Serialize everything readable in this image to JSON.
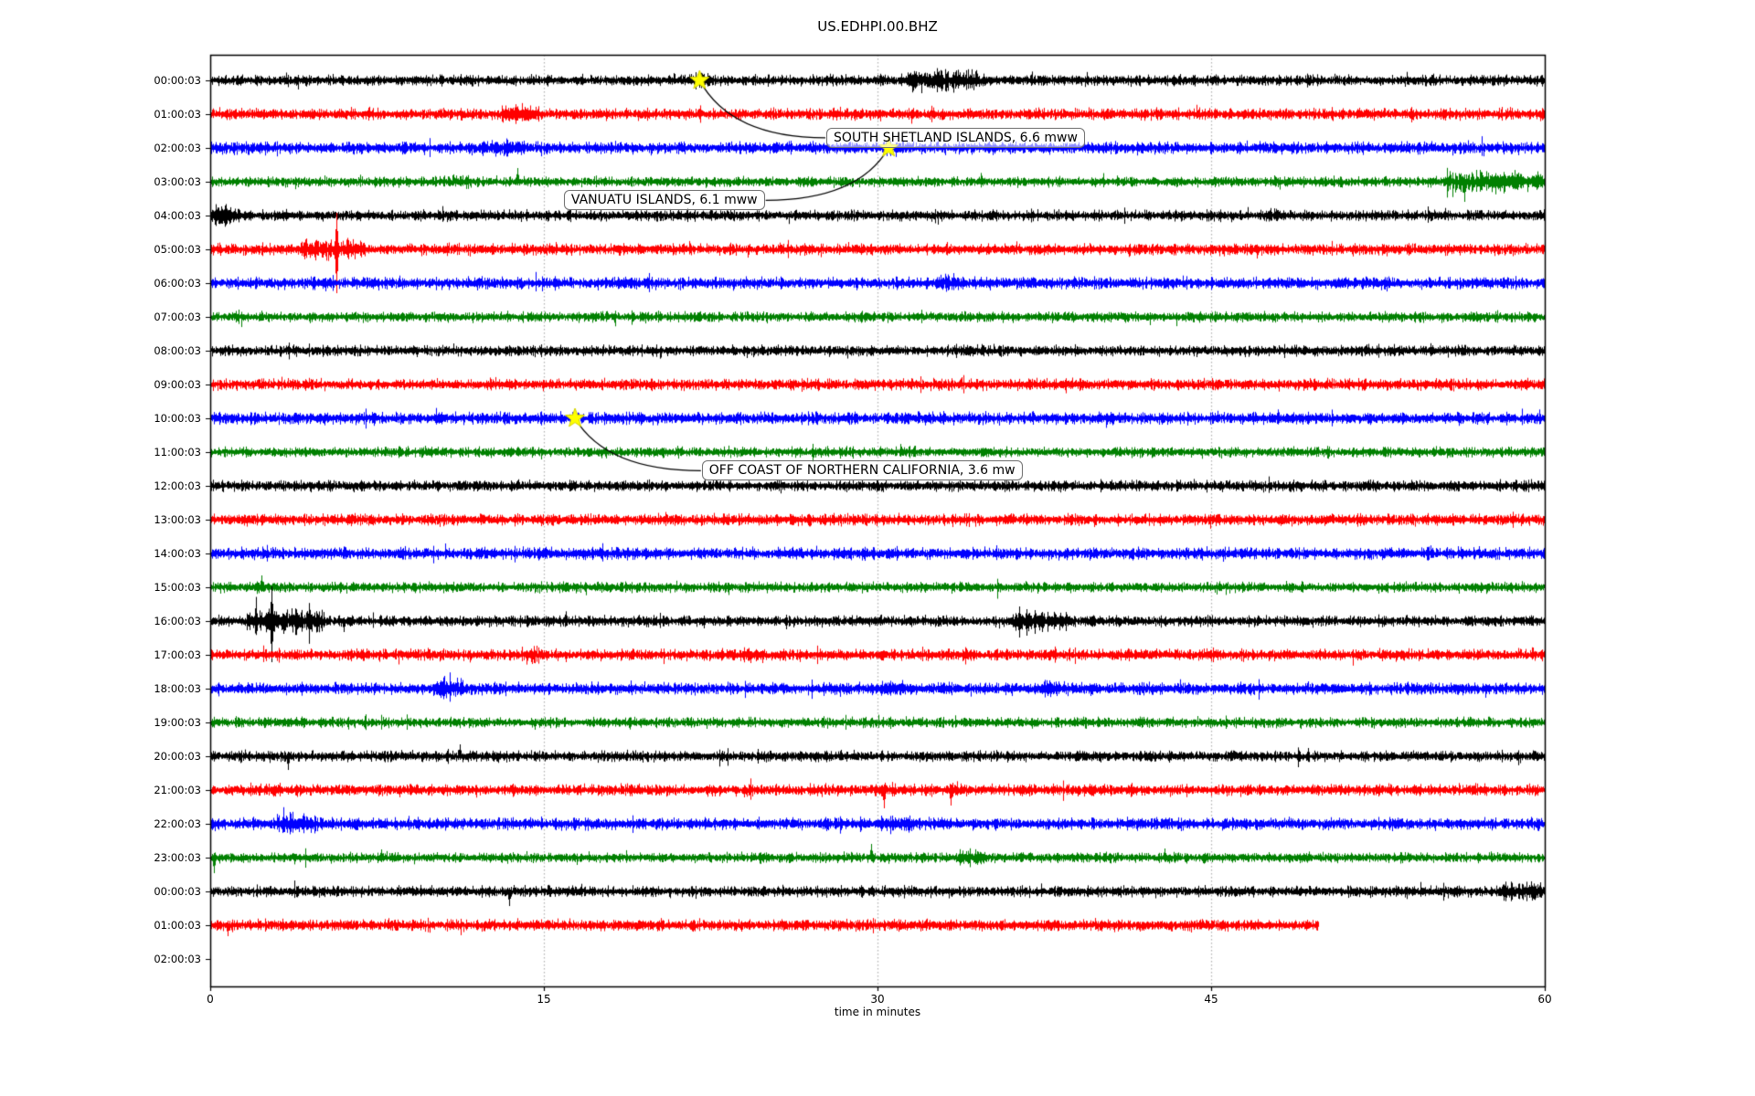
{
  "title": "US.EDHPI.00.BHZ",
  "xlabel": "time in minutes",
  "chart_data": {
    "type": "line",
    "subtype": "seismogram-dayplot",
    "title": "US.EDHPI.00.BHZ",
    "xlabel": "time in minutes",
    "x_unit": "minutes",
    "x_range": [
      0,
      60
    ],
    "x_ticks": [
      "0",
      "15",
      "30",
      "45",
      "60"
    ],
    "x_tick_values": [
      0,
      15,
      30,
      45,
      60
    ],
    "grid": {
      "vertical_gridlines_minutes": [
        15,
        30,
        45
      ],
      "style": "dotted",
      "color": "#b0b0b0"
    },
    "trace_color_cycle": [
      "#000000",
      "#ff0000",
      "#0000ff",
      "#008000"
    ],
    "marker_color": "#ffff00",
    "rows": [
      {
        "label": "00:00:03",
        "color": "#000000",
        "start_min": 0,
        "end_min": 60,
        "bursts": [
          [
            21.6,
            22.4,
            1.5
          ],
          [
            31.3,
            34.3,
            2.1
          ]
        ],
        "impulses": [
          [
            33.4,
            9,
            7
          ]
        ]
      },
      {
        "label": "01:00:03",
        "color": "#ff0000",
        "start_min": 0,
        "end_min": 60,
        "bursts": [
          [
            13.2,
            14.4,
            1.8
          ]
        ],
        "impulses": []
      },
      {
        "label": "02:00:03",
        "color": "#0000ff",
        "start_min": 0,
        "end_min": 60,
        "bursts": [
          [
            12.6,
            13.3,
            1.4
          ],
          [
            30.2,
            31.0,
            1.3
          ]
        ],
        "impulses": []
      },
      {
        "label": "03:00:03",
        "color": "#008000",
        "start_min": 0,
        "end_min": 60,
        "bursts": [
          [
            11.0,
            11.6,
            1.4
          ],
          [
            55.6,
            59.7,
            2.0
          ]
        ],
        "impulses": [
          [
            13.8,
            15,
            4
          ],
          [
            56.4,
            6,
            22
          ],
          [
            58.8,
            10,
            6
          ]
        ]
      },
      {
        "label": "04:00:03",
        "color": "#000000",
        "start_min": 0,
        "end_min": 60,
        "bursts": [
          [
            0,
            0.9,
            1.9
          ],
          [
            47.4,
            48.0,
            1.3
          ]
        ],
        "impulses": [
          [
            0.35,
            7,
            9
          ]
        ]
      },
      {
        "label": "05:00:03",
        "color": "#ff0000",
        "start_min": 0,
        "end_min": 60,
        "bursts": [
          [
            4.3,
            6.6,
            1.9
          ]
        ],
        "impulses": [
          [
            5.68,
            40,
            48
          ]
        ]
      },
      {
        "label": "06:00:03",
        "color": "#0000ff",
        "start_min": 0,
        "end_min": 60,
        "bursts": [
          [
            32.8,
            33.7,
            1.5
          ]
        ],
        "impulses": [
          [
            33.2,
            6,
            7
          ]
        ]
      },
      {
        "label": "07:00:03",
        "color": "#008000",
        "start_min": 0,
        "end_min": 60,
        "bursts": [],
        "impulses": []
      },
      {
        "label": "08:00:03",
        "color": "#000000",
        "start_min": 0,
        "end_min": 60,
        "bursts": [],
        "impulses": [
          [
            14.6,
            5,
            3
          ]
        ]
      },
      {
        "label": "09:00:03",
        "color": "#ff0000",
        "start_min": 0,
        "end_min": 60,
        "bursts": [],
        "impulses": []
      },
      {
        "label": "10:00:03",
        "color": "#0000ff",
        "start_min": 0,
        "end_min": 60,
        "bursts": [],
        "impulses": []
      },
      {
        "label": "11:00:03",
        "color": "#008000",
        "start_min": 0,
        "end_min": 60,
        "bursts": [],
        "impulses": []
      },
      {
        "label": "12:00:03",
        "color": "#000000",
        "start_min": 0,
        "end_min": 60,
        "bursts": [],
        "impulses": []
      },
      {
        "label": "13:00:03",
        "color": "#ff0000",
        "start_min": 0,
        "end_min": 60,
        "bursts": [],
        "impulses": []
      },
      {
        "label": "14:00:03",
        "color": "#0000ff",
        "start_min": 0,
        "end_min": 60,
        "bursts": [],
        "impulses": []
      },
      {
        "label": "15:00:03",
        "color": "#008000",
        "start_min": 0,
        "end_min": 60,
        "bursts": [
          [
            2.1,
            2.6,
            1.3
          ]
        ],
        "impulses": [
          [
            2.3,
            13,
            5
          ]
        ]
      },
      {
        "label": "16:00:03",
        "color": "#000000",
        "start_min": 0,
        "end_min": 60,
        "bursts": [
          [
            1.8,
            4.9,
            2.2
          ],
          [
            36.1,
            38.4,
            1.9
          ]
        ],
        "impulses": [
          [
            2.0,
            10,
            8
          ],
          [
            2.75,
            38,
            45
          ],
          [
            3.3,
            8,
            14
          ],
          [
            6.0,
            4,
            12
          ],
          [
            22.2,
            6,
            8
          ],
          [
            25.9,
            7,
            9
          ],
          [
            36.35,
            16,
            18
          ],
          [
            36.7,
            13,
            16
          ],
          [
            37.05,
            12,
            14
          ],
          [
            37.4,
            10,
            12
          ],
          [
            38.0,
            7,
            6
          ]
        ]
      },
      {
        "label": "17:00:03",
        "color": "#ff0000",
        "start_min": 0,
        "end_min": 60,
        "bursts": [
          [
            14.2,
            14.7,
            1.4
          ],
          [
            24.1,
            24.6,
            1.3
          ]
        ],
        "impulses": [
          [
            14.45,
            4,
            10
          ],
          [
            16.0,
            3,
            8
          ],
          [
            24.3,
            4,
            9
          ],
          [
            30.2,
            4,
            6
          ]
        ]
      },
      {
        "label": "18:00:03",
        "color": "#0000ff",
        "start_min": 0,
        "end_min": 60,
        "bursts": [
          [
            10.2,
            11.1,
            1.8
          ],
          [
            30.4,
            31.1,
            1.4
          ],
          [
            37.4,
            38.1,
            1.4
          ]
        ],
        "impulses": [
          [
            10.6,
            8,
            8
          ]
        ]
      },
      {
        "label": "19:00:03",
        "color": "#008000",
        "start_min": 0,
        "end_min": 60,
        "bursts": [],
        "impulses": [
          [
            12.2,
            3,
            5
          ],
          [
            14.6,
            3,
            8
          ]
        ]
      },
      {
        "label": "20:00:03",
        "color": "#000000",
        "start_min": 0,
        "end_min": 60,
        "bursts": [],
        "impulses": [
          [
            3.5,
            5,
            15
          ],
          [
            11.2,
            13,
            4
          ],
          [
            12.7,
            5,
            5
          ],
          [
            23.0,
            6,
            6
          ],
          [
            24.6,
            8,
            8
          ]
        ]
      },
      {
        "label": "21:00:03",
        "color": "#ff0000",
        "start_min": 0,
        "end_min": 60,
        "bursts": [
          [
            30.1,
            30.6,
            1.4
          ],
          [
            33.1,
            33.6,
            1.3
          ]
        ],
        "impulses": [
          [
            24.0,
            4,
            8
          ],
          [
            30.3,
            6,
            20
          ],
          [
            33.3,
            5,
            17
          ],
          [
            39.0,
            4,
            7
          ]
        ]
      },
      {
        "label": "22:00:03",
        "color": "#0000ff",
        "start_min": 0,
        "end_min": 60,
        "bursts": [
          [
            3.1,
            4.6,
            1.9
          ],
          [
            30.3,
            31.3,
            1.5
          ]
        ],
        "impulses": []
      },
      {
        "label": "23:00:03",
        "color": "#008000",
        "start_min": 0,
        "end_min": 60,
        "bursts": [
          [
            33.7,
            34.6,
            1.6
          ]
        ],
        "impulses": [
          [
            0.15,
            5,
            17
          ],
          [
            7.7,
            9,
            5
          ],
          [
            10.2,
            6,
            3
          ],
          [
            29.7,
            15,
            4
          ],
          [
            42.9,
            10,
            4
          ]
        ]
      },
      {
        "label": "00:00:03",
        "color": "#000000",
        "start_min": 0,
        "end_min": 60,
        "bursts": [
          [
            58.1,
            59.9,
            1.8
          ]
        ],
        "impulses": [
          [
            13.45,
            4,
            16
          ],
          [
            13.65,
            7,
            3
          ],
          [
            15.3,
            2,
            6
          ],
          [
            58.5,
            9,
            9
          ],
          [
            59.3,
            7,
            7
          ]
        ]
      },
      {
        "label": "01:00:03",
        "color": "#ff0000",
        "start_min": 0,
        "end_min": 49.8,
        "bursts": [],
        "impulses": [
          [
            0.8,
            3,
            12
          ]
        ]
      },
      {
        "label": "02:00:03",
        "color": "#0000ff",
        "start_min": 0,
        "end_min": null,
        "bursts": [],
        "impulses": []
      }
    ],
    "events": [
      {
        "label": "SOUTH SHETLAND ISLANDS, 6.6 mww",
        "row": 0,
        "minute": 22.0,
        "box_min": 27.7,
        "box_row": 1.7,
        "attach": "left"
      },
      {
        "label": "VANUATU ISLANDS, 6.1 mww",
        "row": 2,
        "minute": 30.5,
        "box_min": 15.9,
        "box_row": 3.55,
        "attach": "right"
      },
      {
        "label": "OFF COAST OF NORTHERN CALIFORNIA, 3.6 mw",
        "row": 10,
        "minute": 16.4,
        "box_min": 22.1,
        "box_row": 11.55,
        "attach": "left"
      }
    ]
  }
}
